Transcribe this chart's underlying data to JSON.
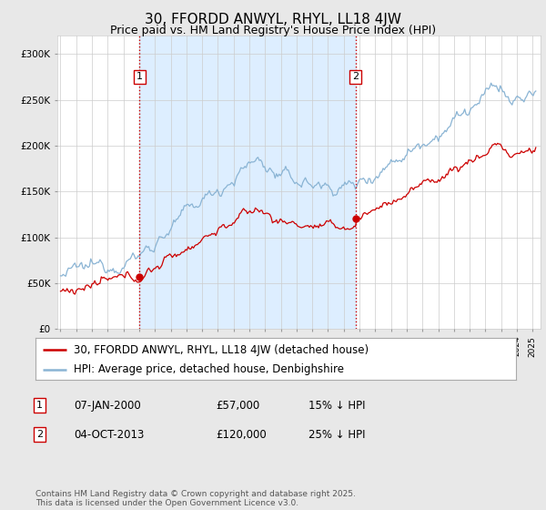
{
  "title": "30, FFORDD ANWYL, RHYL, LL18 4JW",
  "subtitle": "Price paid vs. HM Land Registry's House Price Index (HPI)",
  "ylim": [
    0,
    320000
  ],
  "yticks": [
    0,
    50000,
    100000,
    150000,
    200000,
    250000,
    300000
  ],
  "ytick_labels": [
    "£0",
    "£50K",
    "£100K",
    "£150K",
    "£200K",
    "£250K",
    "£300K"
  ],
  "hpi_color": "#8ab4d4",
  "price_color": "#cc0000",
  "vline_color": "#cc0000",
  "shade_color": "#ddeeff",
  "background_color": "#e8e8e8",
  "plot_bg_color": "#ffffff",
  "purchase1_year": 2000.03,
  "purchase1_price": 57000,
  "purchase2_year": 2013.75,
  "purchase2_price": 120000,
  "legend_entry1": "30, FFORDD ANWYL, RHYL, LL18 4JW (detached house)",
  "legend_entry2": "HPI: Average price, detached house, Denbighshire",
  "table_row1": [
    "1",
    "07-JAN-2000",
    "£57,000",
    "15% ↓ HPI"
  ],
  "table_row2": [
    "2",
    "04-OCT-2013",
    "£120,000",
    "25% ↓ HPI"
  ],
  "footnote": "Contains HM Land Registry data © Crown copyright and database right 2025.\nThis data is licensed under the Open Government Licence v3.0.",
  "title_fontsize": 11,
  "subtitle_fontsize": 9,
  "tick_fontsize": 7.5,
  "legend_fontsize": 8.5
}
